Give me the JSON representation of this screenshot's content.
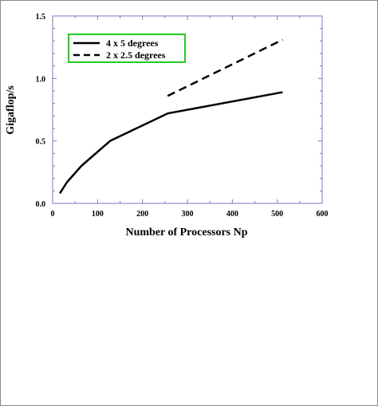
{
  "chart_data": {
    "type": "line",
    "xlabel": "Number of Processors Np",
    "ylabel": "Gigaflop/s",
    "xlim": [
      0,
      600
    ],
    "ylim": [
      0,
      1.5
    ],
    "xticks": [
      "0",
      "100",
      "200",
      "300",
      "400",
      "500",
      "600"
    ],
    "yticks": [
      "0.0",
      "0.5",
      "1.0",
      "1.5"
    ],
    "grid": false,
    "legend_position": "top-left",
    "legend_border_color": "#22cc22",
    "axis_color": "#7777cc",
    "series": [
      {
        "name": "4 x 5 degrees",
        "style": "solid",
        "x": [
          16,
          32,
          64,
          128,
          256,
          512
        ],
        "y": [
          0.08,
          0.17,
          0.3,
          0.5,
          0.72,
          0.89
        ]
      },
      {
        "name": "2 x 2.5 degrees",
        "style": "dashed",
        "x": [
          256,
          512
        ],
        "y": [
          0.86,
          1.31
        ]
      }
    ]
  }
}
